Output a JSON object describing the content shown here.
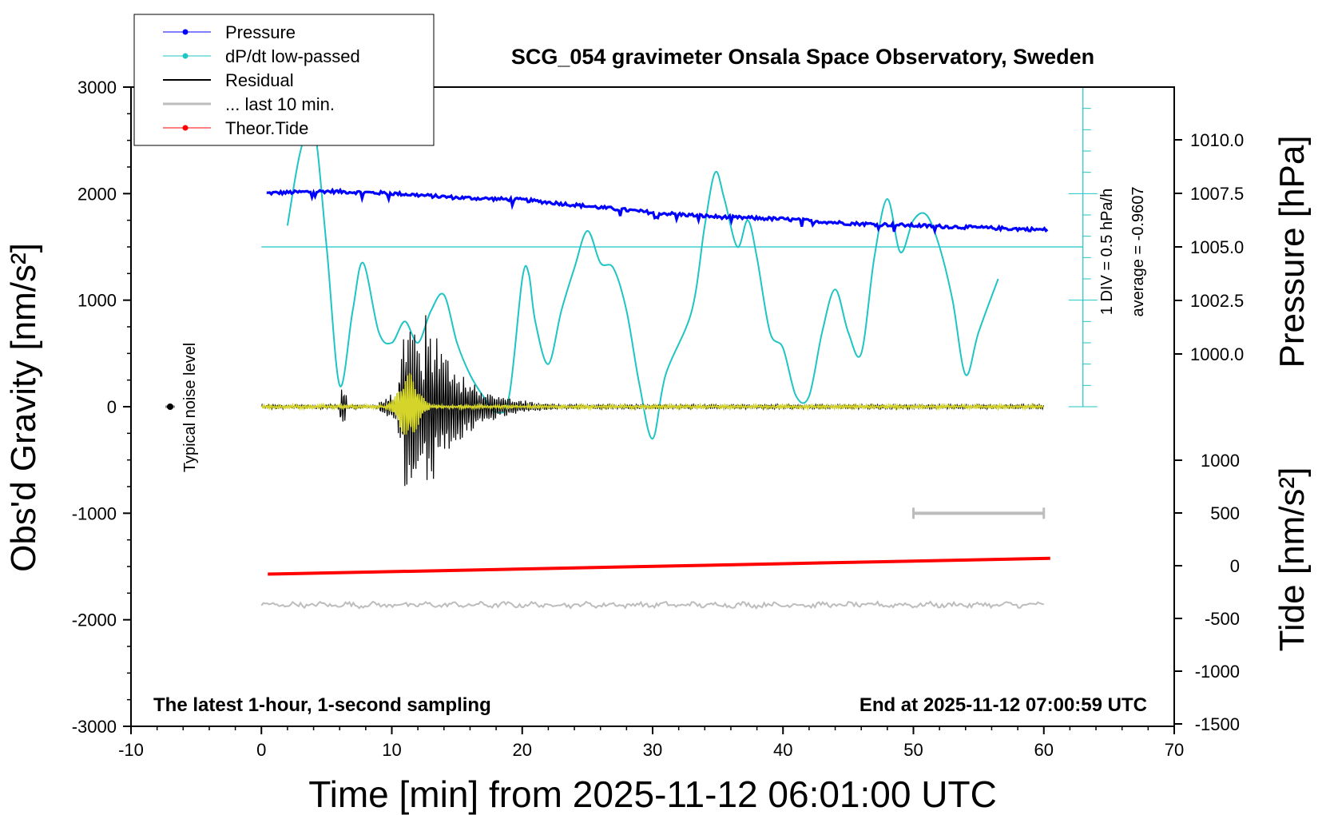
{
  "title": "SCG_054 gravimeter Onsala Space Observatory, Sweden",
  "bottom_left_note": "The latest 1-hour, 1-second sampling",
  "bottom_right_note": "End at 2025-11-12 07:00:59 UTC",
  "noise_label": "Typical noise level",
  "scale_note": "1 DIV = 0.5 hPa/h",
  "average_note": "average = -0.9607",
  "colors": {
    "pressure": "#0000ff",
    "dpdt": "#1fc4c4",
    "residual": "#000000",
    "last10": "#bdbdbd",
    "tide": "#ff0000",
    "filtered": "#d4d42a"
  },
  "chart_data": {
    "type": "line",
    "xlabel": "Time [min] from 2025-11-12 06:01:00 UTC",
    "ylabel_left": "Obs'd Gravity [nm/s²]",
    "ylabel_right_top": "Pressure [hPa]",
    "ylabel_right_bottom": "Tide [nm/s²]",
    "xlim": [
      -10,
      70
    ],
    "ylim_left": [
      -3000,
      3000
    ],
    "x_ticks": [
      "-10",
      "0",
      "10",
      "20",
      "30",
      "40",
      "50",
      "60",
      "70"
    ],
    "y_ticks_left": [
      "3000",
      "2000",
      "1000",
      "0",
      "-1000",
      "-2000",
      "-3000"
    ],
    "pressure_ticks": [
      "1010.0",
      "1007.5",
      "1005.0",
      "1002.5",
      "1000.0"
    ],
    "tide_ticks": [
      "1000",
      "500",
      "0",
      "-500",
      "-1000",
      "-1500"
    ],
    "legend": {
      "position": "top-left",
      "entries": [
        "Pressure",
        "dP/dt low-passed",
        "Residual",
        "... last 10 min.",
        "Theor.Tide"
      ]
    },
    "series": [
      {
        "name": "Pressure",
        "unit": "hPa",
        "x": [
          0,
          5,
          10,
          15,
          20,
          25,
          30,
          35,
          40,
          45,
          50,
          55,
          60
        ],
        "values": [
          1007.5,
          1007.6,
          1007.5,
          1007.3,
          1007.2,
          1006.9,
          1006.6,
          1006.4,
          1006.3,
          1006.1,
          1006.0,
          1005.9,
          1005.8
        ]
      },
      {
        "name": "dP/dt low-passed",
        "x": [
          2,
          3,
          4,
          5,
          6,
          7,
          7.8,
          9,
          10,
          11,
          12,
          13,
          14,
          15,
          16,
          17,
          18,
          19,
          20,
          20.5,
          21,
          22,
          23,
          24,
          25,
          26,
          27,
          28,
          29,
          30,
          31,
          33,
          34,
          34.8,
          35.5,
          36.5,
          37.3,
          38,
          39,
          40,
          41,
          42,
          43,
          44,
          45,
          46,
          47,
          48,
          49,
          50,
          51,
          52,
          53,
          54,
          55,
          56.5
        ],
        "values": [
          1700,
          2400,
          2650,
          1500,
          200,
          900,
          1350,
          700,
          600,
          800,
          600,
          900,
          1050,
          600,
          300,
          100,
          -50,
          100,
          1200,
          1250,
          800,
          400,
          900,
          1300,
          1650,
          1350,
          1300,
          900,
          200,
          -300,
          300,
          900,
          1700,
          2200,
          1950,
          1500,
          1750,
          1400,
          700,
          550,
          100,
          100,
          700,
          1100,
          700,
          500,
          1400,
          1950,
          1450,
          1750,
          1800,
          1500,
          1000,
          300,
          700,
          1200
        ]
      },
      {
        "name": "Theor.Tide",
        "unit": "nm/s²",
        "x": [
          0,
          60
        ],
        "values": [
          -80,
          70
        ]
      },
      {
        "name": "Residual",
        "x": [
          0,
          60
        ],
        "values": [
          0,
          0
        ]
      },
      {
        "name": "... last 10 min.",
        "x": [
          0,
          60
        ],
        "values": [
          -1860,
          -1860
        ]
      }
    ],
    "dpdt_reference_line": 1500,
    "last10_bar": {
      "x_start": 50,
      "x_end": 60,
      "value": -1000
    },
    "noise_point": {
      "x": -7,
      "value": 0
    }
  }
}
